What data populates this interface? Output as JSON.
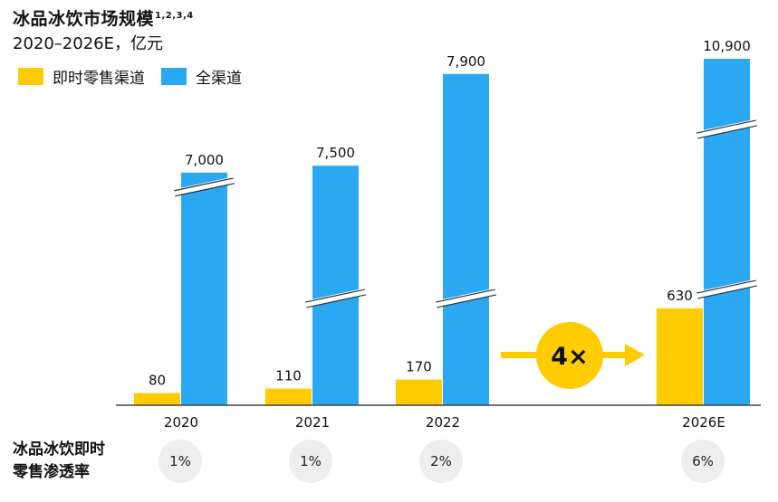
{
  "title": "冰品冰饮市场规模",
  "title_notes": "1,2,3,4",
  "subtitle": "2020–2026E，亿元",
  "colors": {
    "instant": "#FFCC00",
    "all": "#2AA9F2",
    "axis": "#444444",
    "circle": "#eeeeee",
    "arrow": "#FFCC00"
  },
  "chart_data": {
    "type": "bar",
    "categories": [
      "2020",
      "2021",
      "2022",
      "2026E"
    ],
    "series": [
      {
        "name": "即时零售渠道",
        "values": [
          80,
          110,
          170,
          630
        ]
      },
      {
        "name": "全渠道",
        "values": [
          7000,
          7500,
          7900,
          10900
        ]
      }
    ],
    "value_labels": {
      "即时零售渠道": [
        "80",
        "110",
        "170",
        "630"
      ],
      "全渠道": [
        "7,000",
        "7,500",
        "7,900",
        "10,900"
      ]
    },
    "axis_break": true,
    "annotation": "4×"
  },
  "penetration": {
    "label_line1": "冰品冰饮即时",
    "label_line2": "零售渗透率",
    "values": [
      "1%",
      "1%",
      "2%",
      "6%"
    ]
  }
}
